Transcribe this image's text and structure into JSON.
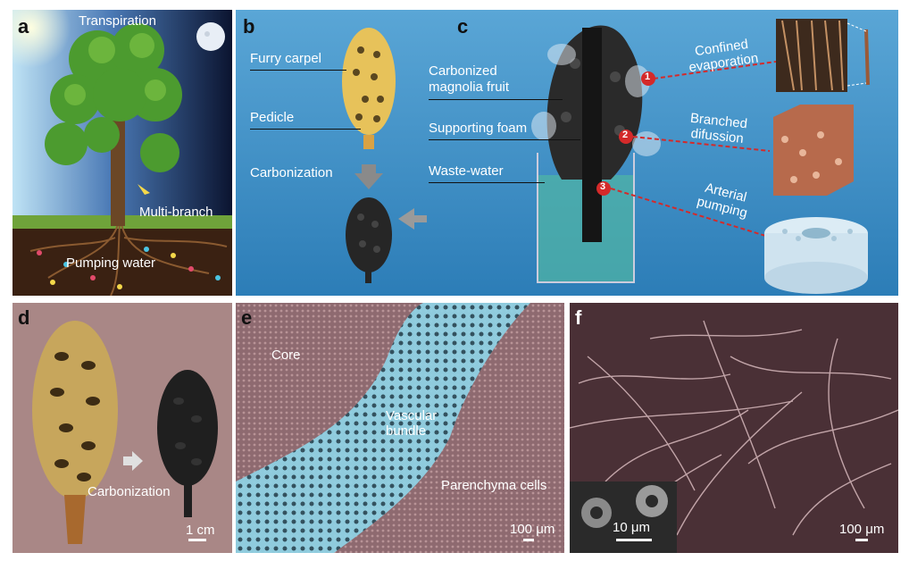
{
  "panel_labels": {
    "a": "a",
    "b": "b",
    "c": "c",
    "d": "d",
    "e": "e",
    "f": "f"
  },
  "panel_a": {
    "transpiration": "Transpiration",
    "multi_branch": "Multi-branch",
    "pumping_water": "Pumping water"
  },
  "panel_b": {
    "furry_carpel": "Furry carpel",
    "pedicle": "Pedicle",
    "carbonization": "Carbonization"
  },
  "panel_c": {
    "carbonized_line1": "Carbonized",
    "carbonized_line2": "magnolia fruit",
    "supporting_foam": "Supporting foam",
    "waste_water": "Waste-water",
    "callout_numbers": [
      "1",
      "2",
      "3"
    ],
    "confined_line1": "Confined",
    "confined_line2": "evaporation",
    "branched_line1": "Branched",
    "branched_line2": "difussion",
    "arterial_line1": "Arterial",
    "arterial_line2": "pumping"
  },
  "panel_d": {
    "carbonization": "Carbonization",
    "scale": "1 cm"
  },
  "panel_e": {
    "core": "Core",
    "vascular_line1": "Vascular",
    "vascular_line2": "bundle",
    "parenchyma": "Parenchyma cells",
    "scale": "100 μm"
  },
  "panel_f": {
    "inset_scale": "10 μm",
    "scale": "100 μm"
  },
  "colors": {
    "sky_blue": "#2f86c0",
    "callout_red": "#d42a2a",
    "sem_pink": "#8e6a70",
    "vascular_cyan": "#8fd3e6",
    "panel_d_bg": "#a98786"
  }
}
